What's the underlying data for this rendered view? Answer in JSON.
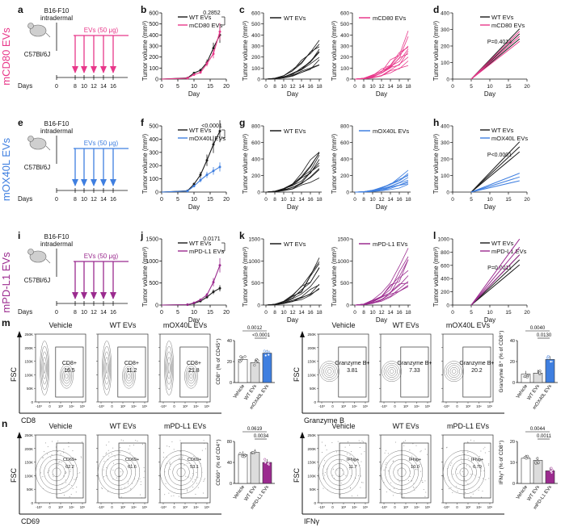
{
  "figure": {
    "colors": {
      "wt": "#1a1a1a",
      "cd80": "#e8388a",
      "ox40l": "#3f7fe0",
      "pdl1": "#9b2b8f",
      "gray": "#9a9a9a"
    },
    "rows": [
      {
        "id": "cd80",
        "row_label": "mCD80 EVs",
        "color_key": "cd80",
        "schematic": {
          "letter": "a",
          "cell_line": "B16-F10",
          "route": "intradermal",
          "mouse": "C57Bl/6J",
          "dose": "EVs (50 μg)",
          "days_label": "Days",
          "days": [
            "0",
            "8",
            "10",
            "12",
            "14",
            "16"
          ]
        },
        "growth": {
          "letter": "b",
          "p_value": "0.2852",
          "legend": [
            "WT EVs",
            "mCD80 EVs"
          ]
        },
        "individual": {
          "letter": "c",
          "wt_legend": "WT EVs",
          "treat_legend": "mCD80 EVs"
        },
        "regression": {
          "letter": "d",
          "p_value": "P=0.4014",
          "legend": [
            "WT EVs",
            "mCD80 EVs"
          ]
        }
      },
      {
        "id": "ox40l",
        "row_label": "mOX40L EVs",
        "color_key": "ox40l",
        "schematic": {
          "letter": "e",
          "cell_line": "B16-F10",
          "route": "intradermal",
          "mouse": "C57Bl/6J",
          "dose": "EVs (50 μg)",
          "days_label": "Days",
          "days": [
            "0",
            "8",
            "10",
            "12",
            "14",
            "16"
          ]
        },
        "growth": {
          "letter": "f",
          "p_value": "<0.0001",
          "legend": [
            "WT EVs",
            "mOX40L EVs"
          ]
        },
        "individual": {
          "letter": "g",
          "wt_legend": "WT EVs",
          "treat_legend": "mOX40L EVs"
        },
        "regression": {
          "letter": "h",
          "p_value": "P<0.0001",
          "legend": [
            "WT EVs",
            "mOX40L EVs"
          ]
        }
      },
      {
        "id": "pdl1",
        "row_label": "mPD-L1 EVs",
        "color_key": "pdl1",
        "schematic": {
          "letter": "i",
          "cell_line": "B16-F10",
          "route": "intradermal",
          "mouse": "C57Bl/6J",
          "dose": "EVs (50 μg)",
          "days_label": "Days",
          "days": [
            "0",
            "8",
            "10",
            "12",
            "14",
            "16"
          ]
        },
        "growth": {
          "letter": "j",
          "p_value": "0.0171",
          "legend": [
            "WT EVs",
            "mPD-L1 EVs"
          ]
        },
        "individual": {
          "letter": "k",
          "wt_legend": "WT EVs",
          "treat_legend": "mPD-L1 EVs"
        },
        "regression": {
          "letter": "l",
          "p_value": "P=0.0011",
          "legend": [
            "WT EVs",
            "mPD-L1 EVs"
          ]
        }
      }
    ],
    "axis_text": {
      "tumor_ylabel": "Tumor volume (mm³)",
      "day_label": "Day",
      "fsc": "FSC"
    },
    "flow": [
      {
        "letter": "m",
        "panels": [
          {
            "xlabel": "CD8",
            "kind": "wide",
            "plots": [
              {
                "title": "Vehicle",
                "gate_label": "CD8+",
                "value": "16.5"
              },
              {
                "title": "WT EVs",
                "gate_label": "CD8+",
                "value": "11.2"
              },
              {
                "title": "mOX40L EVs",
                "gate_label": "CD8+",
                "value": "21.8"
              }
            ],
            "bar": {
              "ylabel": "CD8⁺ (% of CD45⁺)",
              "y_ticks": [
                "0",
                "20",
                "40"
              ],
              "groups": [
                "Vehicle",
                "WT EVs",
                "mOX40L EVs"
              ],
              "values": [
                22,
                19,
                28
              ],
              "ymax": 40,
              "p_top": "0.0012",
              "p_bottom": "<0.0001",
              "treat_color_key": "ox40l"
            }
          },
          {
            "xlabel": "Granzyme B",
            "kind": "blob",
            "plots": [
              {
                "title": "Vehicle",
                "gate_label": "Granzyme B+",
                "value": "3.81"
              },
              {
                "title": "WT EVs",
                "gate_label": "Granzyme B+",
                "value": "7.33"
              },
              {
                "title": "mOX40L EVs",
                "gate_label": "Granzyme B+",
                "value": "20.2"
              }
            ],
            "bar": {
              "ylabel": "Granzyme B⁺ (% of CD8⁺)",
              "y_ticks": [
                "0",
                "20",
                "40"
              ],
              "groups": [
                "Vehicle",
                "WT EVs",
                "mOX40L EVs"
              ],
              "values": [
                8,
                9,
                22
              ],
              "ymax": 40,
              "p_top": "0.0040",
              "p_bottom": "0.0130",
              "treat_color_key": "ox40l"
            }
          }
        ]
      },
      {
        "letter": "n",
        "panels": [
          {
            "xlabel": "CD69",
            "kind": "spread",
            "plots": [
              {
                "title": "Vehicle",
                "gate_label": "CD69+",
                "value": "62.2"
              },
              {
                "title": "WT EVs",
                "gate_label": "CD69+",
                "value": "61.6"
              },
              {
                "title": "mPD-L1 EVs",
                "gate_label": "CD69+",
                "value": "53.1"
              }
            ],
            "bar": {
              "ylabel": "CD69⁺ (% of CD4⁺)",
              "y_ticks": [
                "0",
                "40",
                "80"
              ],
              "groups": [
                "Vehicle",
                "WT EVs",
                "mPD-L1 EVs"
              ],
              "values": [
                55,
                59,
                40
              ],
              "ymax": 80,
              "p_top": "0.0619",
              "p_bottom": "0.0034",
              "treat_color_key": "pdl1"
            }
          },
          {
            "xlabel": "IFNγ",
            "kind": "spread",
            "plots": [
              {
                "title": "Vehicle",
                "gate_label": "IFNg+",
                "value": "11.7"
              },
              {
                "title": "WT EVs",
                "gate_label": "IFNg+",
                "value": "10.0"
              },
              {
                "title": "mPD-L1 EVs",
                "gate_label": "IFNg+",
                "value": "6.79"
              }
            ],
            "bar": {
              "ylabel": "IFNγ⁺ (% of CD8⁺)",
              "y_ticks": [
                "0",
                "10",
                "20"
              ],
              "groups": [
                "Vehicle",
                "WT EVs",
                "mPD-L1 EVs"
              ],
              "values": [
                12,
                11,
                6
              ],
              "ymax": 20,
              "p_top": "0.0044",
              "p_bottom": "0.0011",
              "treat_color_key": "pdl1"
            }
          }
        ]
      }
    ],
    "flow_axis": {
      "x_ticks": [
        "-10³",
        "0",
        "10³",
        "10⁴",
        "10⁵"
      ],
      "y_ticks": [
        "0",
        "50K",
        "100K",
        "150K",
        "200K",
        "250K"
      ]
    }
  },
  "chart_data": [
    {
      "type": "line",
      "panel": "b",
      "xlabel": "Day",
      "ylabel": "Tumor volume (mm³)",
      "ylim": [
        0,
        600
      ],
      "xlim": [
        0,
        20
      ],
      "x_ticks": [
        0,
        5,
        10,
        15,
        20
      ],
      "y_ticks": [
        0,
        100,
        200,
        300,
        400,
        500,
        600
      ],
      "series": [
        {
          "name": "WT EVs",
          "color_key": "wt",
          "x": [
            0,
            8,
            10,
            12,
            14,
            16,
            18
          ],
          "y": [
            0,
            10,
            55,
            80,
            150,
            280,
            400
          ]
        },
        {
          "name": "mCD80 EVs",
          "color_key": "cd80",
          "x": [
            0,
            8,
            10,
            12,
            14,
            16,
            18
          ],
          "y": [
            0,
            8,
            40,
            60,
            140,
            230,
            430
          ]
        }
      ]
    },
    {
      "type": "line",
      "panel": "f",
      "xlabel": "Day",
      "ylabel": "Tumor volume (mm³)",
      "ylim": [
        0,
        500
      ],
      "xlim": [
        0,
        20
      ],
      "x_ticks": [
        0,
        5,
        10,
        15,
        20
      ],
      "y_ticks": [
        0,
        100,
        200,
        300,
        400,
        500
      ],
      "series": [
        {
          "name": "WT EVs",
          "color_key": "wt",
          "x": [
            0,
            8,
            10,
            12,
            14,
            16,
            18
          ],
          "y": [
            0,
            10,
            60,
            130,
            240,
            360,
            460
          ]
        },
        {
          "name": "mOX40L EVs",
          "color_key": "ox40l",
          "x": [
            0,
            8,
            10,
            12,
            14,
            16,
            18
          ],
          "y": [
            0,
            8,
            45,
            90,
            130,
            160,
            190
          ]
        }
      ]
    },
    {
      "type": "line",
      "panel": "j",
      "xlabel": "Day",
      "ylabel": "Tumor volume (mm³)",
      "ylim": [
        0,
        1500
      ],
      "xlim": [
        0,
        20
      ],
      "x_ticks": [
        0,
        5,
        10,
        15,
        20
      ],
      "y_ticks": [
        0,
        500,
        1000,
        1500
      ],
      "series": [
        {
          "name": "WT EVs",
          "color_key": "wt",
          "x": [
            0,
            8,
            10,
            12,
            14,
            16,
            18
          ],
          "y": [
            0,
            10,
            40,
            90,
            180,
            300,
            380
          ]
        },
        {
          "name": "mPD-L1 EVs",
          "color_key": "pdl1",
          "x": [
            0,
            8,
            10,
            12,
            14,
            16,
            18
          ],
          "y": [
            0,
            10,
            50,
            120,
            230,
            520,
            900
          ]
        }
      ]
    },
    {
      "type": "line",
      "panel": "c/g/k",
      "note": "individual tumor growth curves",
      "xlabel": "Day",
      "ylabel": "Tumor volume (mm³)",
      "x_ticks": [
        0,
        8,
        10,
        12,
        14,
        16,
        18
      ],
      "ranges": {
        "c": [
          0,
          600
        ],
        "g": [
          0,
          800
        ],
        "k": [
          0,
          1500
        ]
      }
    },
    {
      "type": "line",
      "panel": "d/h/l",
      "note": "linear regression with 95% bands",
      "xlabel": "Day",
      "ylabel": "Tumor volume (mm³)",
      "x_ticks": [
        0,
        5,
        10,
        15,
        20
      ],
      "ranges": {
        "d": [
          0,
          400
        ],
        "h": [
          0,
          400
        ],
        "l": [
          0,
          1000
        ]
      }
    }
  ]
}
